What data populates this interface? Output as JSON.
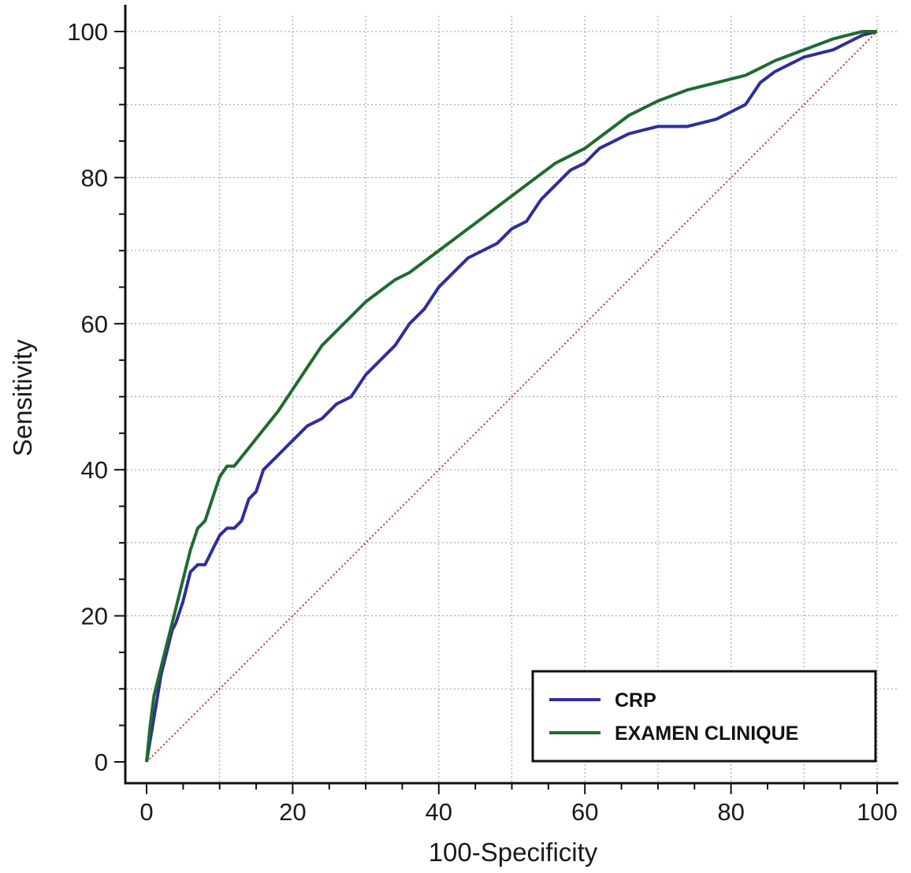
{
  "chart_data": {
    "type": "line",
    "xlabel": "100-Specificity",
    "ylabel": "Sensitivity",
    "xlim": [
      0,
      100
    ],
    "ylim": [
      0,
      100
    ],
    "x_ticks": [
      0,
      20,
      40,
      60,
      80,
      100
    ],
    "y_ticks": [
      0,
      20,
      40,
      60,
      80,
      100
    ],
    "grid": true,
    "legend_position": "bottom-right",
    "reference_line": {
      "x": [
        0,
        100
      ],
      "y": [
        0,
        100
      ],
      "color": "#c0392b",
      "style": "dotted"
    },
    "series": [
      {
        "name": "CRP",
        "color": "#2e2e9a",
        "x": [
          0,
          0.5,
          1,
          1.5,
          2,
          2.5,
          3,
          3.5,
          4,
          5,
          6,
          7,
          8,
          9,
          10,
          11,
          12,
          13,
          14,
          15,
          16,
          17,
          18,
          19,
          20,
          22,
          24,
          26,
          28,
          30,
          32,
          34,
          36,
          38,
          40,
          42,
          44,
          46,
          48,
          50,
          52,
          54,
          56,
          58,
          60,
          62,
          64,
          66,
          68,
          70,
          72,
          74,
          76,
          78,
          80,
          82,
          84,
          86,
          88,
          90,
          92,
          94,
          96,
          98,
          100
        ],
        "y": [
          0,
          3,
          6,
          9,
          12,
          14,
          16,
          18,
          19,
          22,
          26,
          27,
          27,
          29,
          31,
          32,
          32,
          33,
          36,
          37,
          40,
          41,
          42,
          43,
          44,
          46,
          47,
          49,
          50,
          53,
          55,
          57,
          60,
          62,
          65,
          67,
          69,
          70,
          71,
          73,
          74,
          77,
          79,
          81,
          82,
          84,
          85,
          86,
          86.5,
          87,
          87,
          87,
          87.5,
          88,
          89,
          90,
          93,
          94.5,
          95.5,
          96.5,
          97,
          97.5,
          98.5,
          99.5,
          100
        ]
      },
      {
        "name": "EXAMEN CLINIQUE",
        "color": "#1f6b2e",
        "x": [
          0,
          0.5,
          1,
          2,
          3,
          4,
          5,
          6,
          7,
          8,
          9,
          10,
          11,
          12,
          14,
          16,
          18,
          20,
          22,
          24,
          26,
          28,
          30,
          32,
          34,
          36,
          40,
          44,
          48,
          52,
          56,
          60,
          62,
          64,
          66,
          68,
          70,
          74,
          78,
          82,
          84,
          86,
          90,
          94,
          96,
          98,
          100
        ],
        "y": [
          0,
          5,
          9,
          13,
          17,
          21,
          25,
          29,
          32,
          33,
          36,
          39,
          40.5,
          40.5,
          43,
          45.5,
          48,
          51,
          54,
          57,
          59,
          61,
          63,
          64.5,
          66,
          67,
          70,
          73,
          76,
          79,
          82,
          84,
          85.5,
          87,
          88.5,
          89.5,
          90.5,
          92,
          93,
          94,
          95,
          96,
          97.5,
          99,
          99.5,
          100,
          100
        ]
      }
    ]
  }
}
